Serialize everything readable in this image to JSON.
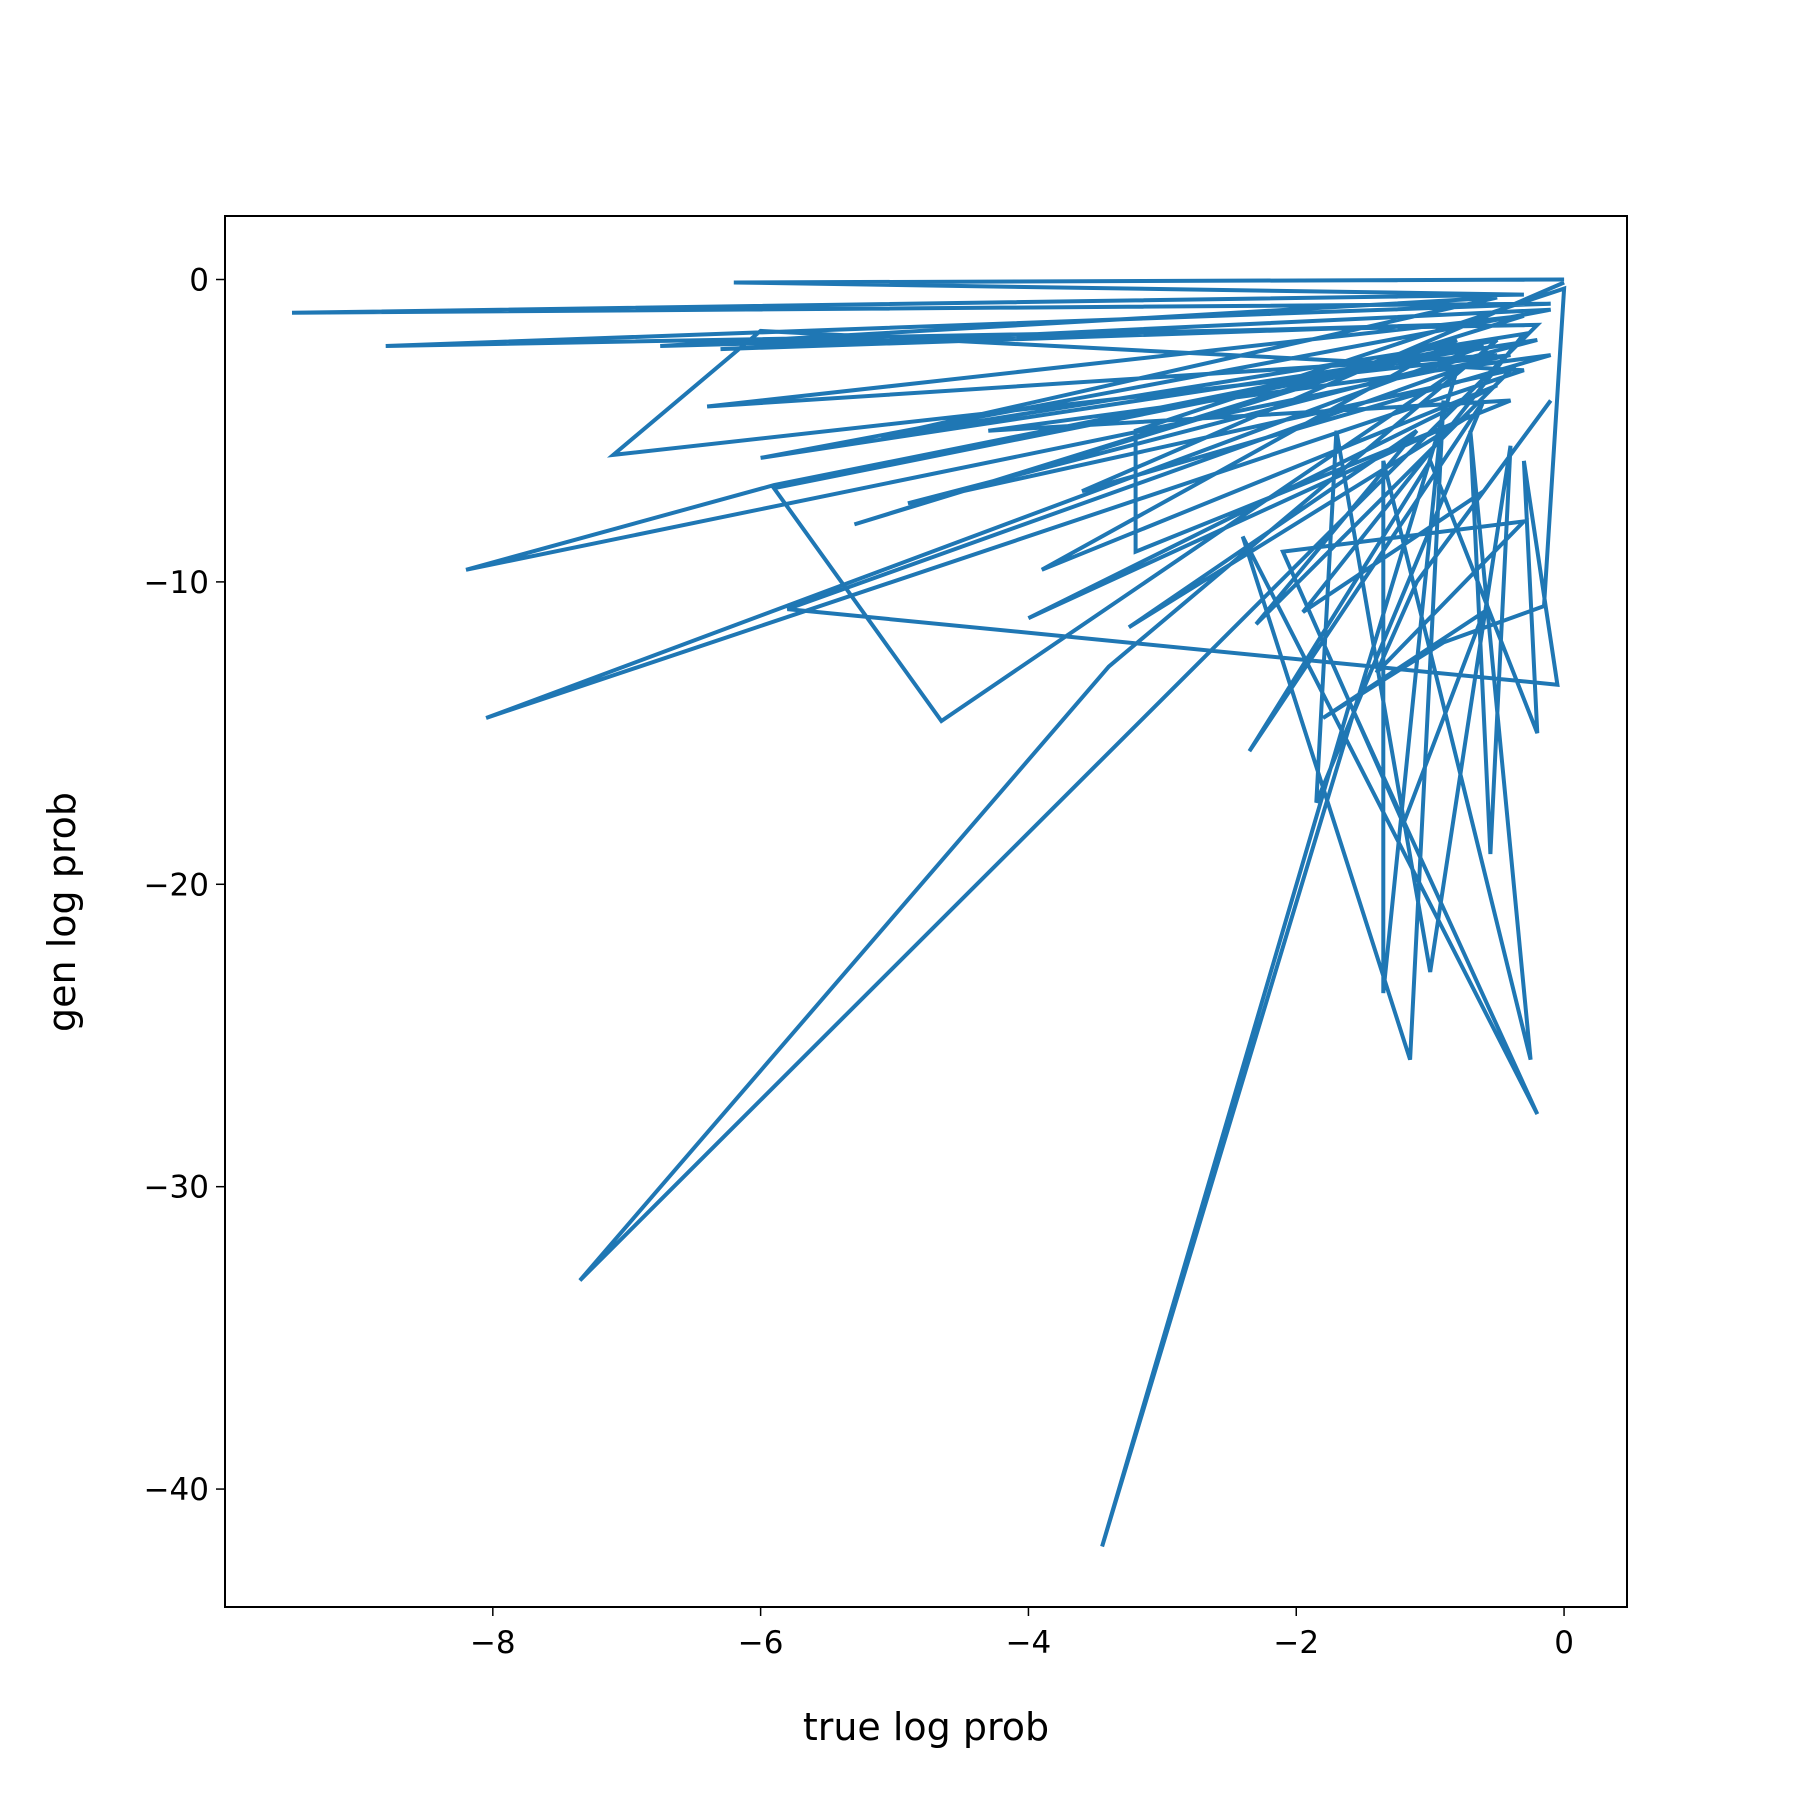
{
  "chart_data": {
    "type": "line",
    "xlabel": "true log prob",
    "ylabel": "gen log prob",
    "xlim": [
      -10.0,
      0.47
    ],
    "ylim": [
      -43.9,
      2.1
    ],
    "xticks": [
      {
        "value": -8,
        "label": "−8"
      },
      {
        "value": -6,
        "label": "−6"
      },
      {
        "value": -4,
        "label": "−4"
      },
      {
        "value": -2,
        "label": "−2"
      },
      0
    ],
    "yticks": [
      {
        "value": -40,
        "label": "−40"
      },
      {
        "value": -30,
        "label": "−30"
      },
      {
        "value": -20,
        "label": "−20"
      },
      {
        "value": -10,
        "label": "−10"
      },
      0
    ],
    "grid": false,
    "series": [
      {
        "color": "#1f77b4",
        "x": [
          0,
          -6.2,
          -0.3,
          -9.5,
          -0.1,
          -8.8,
          -0.2,
          -7.35,
          -3.4,
          -0.5,
          -5.9,
          -8.2,
          -0.4,
          -7.1,
          -6.0,
          -0.3,
          -8.05,
          -0.6,
          -5.9,
          -4.65,
          -0.8,
          -3.45,
          -1.6,
          -0.2,
          -2.4,
          -1.15,
          -0.9,
          -1.35,
          -1.35,
          -0.25,
          -0.7,
          -0.55,
          -0.4,
          -1.0,
          -1.7,
          -1.85,
          -0.6,
          -2.35,
          -1.0,
          -0.2,
          -0.3,
          -0.05,
          -5.8,
          -0.5,
          -6.4,
          -0.3,
          -5.3,
          -0.8,
          -3.9,
          -0.5,
          -4.0,
          -0.7,
          -3.25,
          -1.1,
          -2.3,
          -0.4,
          -4.9,
          -0.2,
          -6.0,
          -0.1,
          -6.3,
          -0.9,
          -6.75,
          -0.5,
          -5.1,
          -0.3,
          -1.95,
          -0.6,
          -0.1,
          -1.1,
          -1.4,
          -0.3,
          -2.1,
          -1.2,
          -0.6,
          -1.8,
          -0.9,
          -0.15,
          0,
          -3.2,
          -3.2,
          -0.4,
          -4.3,
          -0.1,
          -3.6,
          0
        ],
        "values": [
          0,
          -0.1,
          -0.5,
          -1.1,
          -0.8,
          -2.2,
          -1.5,
          -33.1,
          -12.8,
          -2,
          -6.8,
          -9.6,
          -2.5,
          -5.8,
          -1.7,
          -3,
          -14.5,
          -2.2,
          -6.9,
          -14.6,
          -3,
          -41.9,
          -14,
          -27.6,
          -8.5,
          -25.8,
          -4,
          -23.6,
          -6,
          -25.8,
          -5,
          -19,
          -5.5,
          -22.9,
          -5,
          -17.3,
          -4,
          -15.6,
          -6,
          -15,
          -6,
          -13.4,
          -10.9,
          -2.5,
          -4.2,
          -1.2,
          -8.1,
          -2,
          -9.6,
          -3.5,
          -11.2,
          -4.5,
          -11.5,
          -5,
          -11.4,
          -3,
          -7.4,
          -2,
          -5.9,
          -1,
          -2.3,
          -1.5,
          -2.2,
          -0.6,
          -5.2,
          -1.8,
          -11,
          -7,
          -4,
          -10,
          -13,
          -8,
          -9,
          -18,
          -11,
          -14.5,
          -12,
          -10.8,
          -0.3,
          -5,
          -9,
          -4,
          -5,
          -2.5,
          -7,
          -0.1
        ]
      }
    ]
  }
}
